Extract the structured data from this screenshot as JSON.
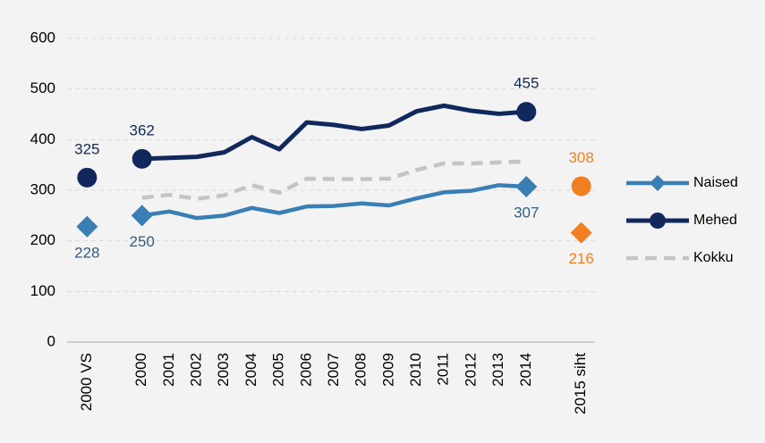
{
  "chart_data": {
    "type": "line",
    "categories": [
      "2000 VS",
      null,
      "2000",
      "2001",
      "2002",
      "2003",
      "2004",
      "2005",
      "2006",
      "2007",
      "2008",
      "2009",
      "2010",
      "2011",
      "2012",
      "2013",
      "2014",
      null,
      "2015 siht"
    ],
    "series": [
      {
        "name": "Naised",
        "color": "#3a7fb4",
        "label_color": "#2f5f82",
        "marker": "diamond",
        "dash": false,
        "label_position": "below",
        "values": [
          228,
          null,
          250,
          258,
          245,
          250,
          265,
          255,
          268,
          269,
          274,
          270,
          284,
          296,
          299,
          310,
          307,
          null,
          216
        ]
      },
      {
        "name": "Mehed",
        "color": "#10285c",
        "label_color": "#10285c",
        "marker": "circle",
        "dash": false,
        "label_position": "above",
        "values": [
          325,
          null,
          362,
          364,
          366,
          375,
          405,
          381,
          434,
          429,
          421,
          428,
          456,
          467,
          457,
          451,
          455,
          null,
          308
        ]
      },
      {
        "name": "Kokku",
        "color": "#c4c4c4",
        "marker": "none",
        "dash": true,
        "values": [
          null,
          null,
          285,
          291,
          283,
          290,
          310,
          295,
          323,
          322,
          322,
          323,
          340,
          353,
          353,
          355,
          357,
          null,
          null
        ]
      }
    ],
    "marker_indices": [
      0,
      2,
      16,
      18
    ],
    "highlight_index": 18,
    "highlight_color": "#f07f21",
    "ylim": [
      0,
      600
    ],
    "yticks": [
      0,
      100,
      200,
      300,
      400,
      500,
      600
    ],
    "grid": true,
    "legend": "right"
  }
}
